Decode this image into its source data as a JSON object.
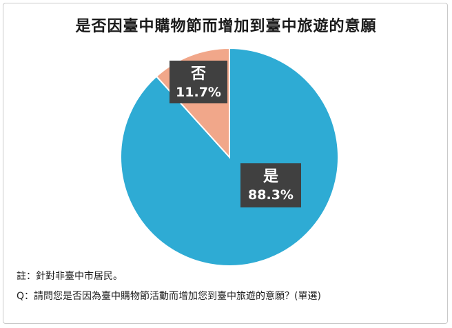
{
  "chart_data": {
    "type": "pie",
    "title": "是否因臺中購物節而增加到臺中旅遊的意願",
    "slices": [
      {
        "label": "是",
        "value": 88.3,
        "value_label": "88.3%",
        "color": "#2EABD4"
      },
      {
        "label": "否",
        "value": 11.7,
        "value_label": "11.7%",
        "color": "#F1A78A"
      }
    ]
  },
  "notes": {
    "note1": "註：針對非臺中市居民。",
    "note2": "Q：請問您是否因為臺中購物節活動而增加您到臺中旅遊的意願？(單選)"
  }
}
